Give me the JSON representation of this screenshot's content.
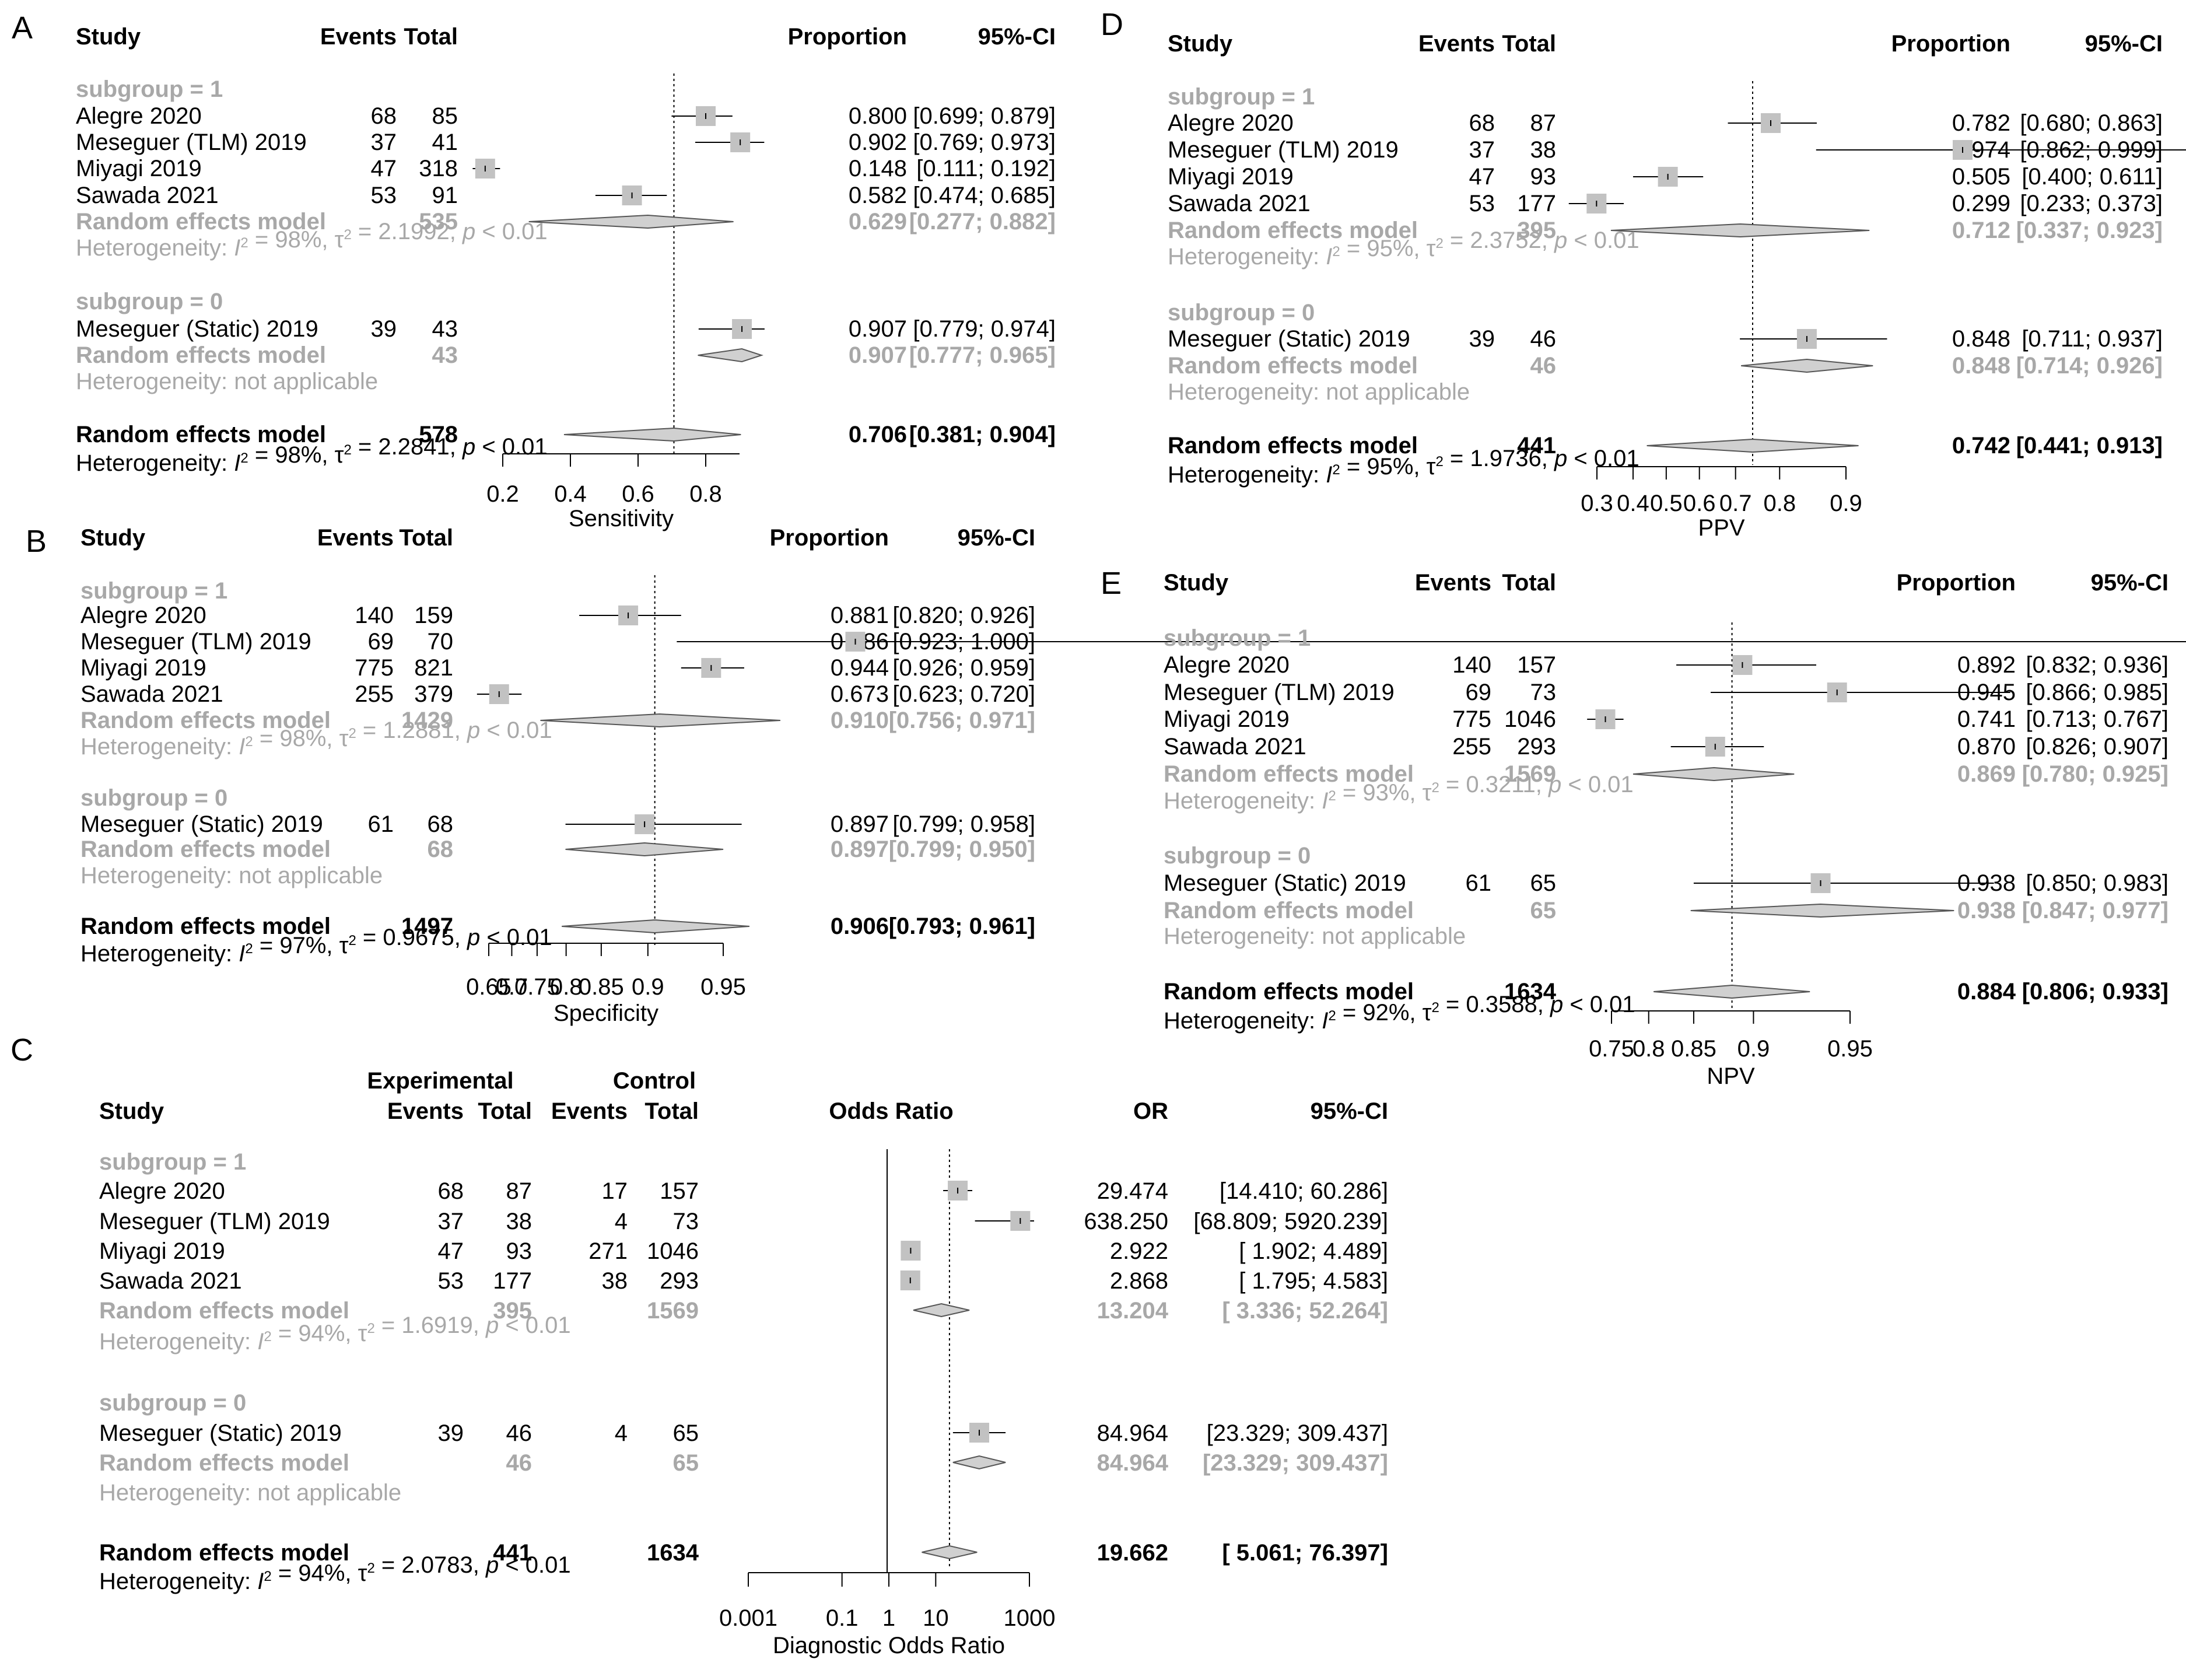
{
  "chart_data": [
    {
      "letter": "A",
      "type": "forest",
      "columns": [
        "Study",
        "Events",
        "Total",
        "Proportion",
        "95%-CI"
      ],
      "xlabel": "Sensitivity",
      "scale": "linear",
      "xlim": [
        0.2,
        0.9
      ],
      "xticks": [
        0.2,
        0.4,
        0.6,
        0.8
      ],
      "xtick_labels": [
        "0.2",
        "0.4",
        "0.6",
        "0.8"
      ],
      "ref_line": 0.706,
      "subgroups": [
        {
          "label": "subgroup = 1",
          "studies": [
            {
              "name": "Alegre 2020",
              "events": "68",
              "total": "85",
              "est": 0.8,
              "lo": 0.699,
              "hi": 0.879,
              "est_text": "0.800",
              "ci_text": "[0.699; 0.879]"
            },
            {
              "name": "Meseguer (TLM) 2019",
              "events": "37",
              "total": "41",
              "est": 0.902,
              "lo": 0.769,
              "hi": 0.973,
              "est_text": "0.902",
              "ci_text": "[0.769; 0.973]"
            },
            {
              "name": "Miyagi 2019",
              "events": "47",
              "total": "318",
              "est": 0.148,
              "lo": 0.111,
              "hi": 0.192,
              "est_text": "0.148",
              "ci_text": "[0.111; 0.192]"
            },
            {
              "name": "Sawada 2021",
              "events": "53",
              "total": "91",
              "est": 0.582,
              "lo": 0.474,
              "hi": 0.685,
              "est_text": "0.582",
              "ci_text": "[0.474; 0.685]"
            }
          ],
          "model": {
            "label": "Random effects model",
            "total": "535",
            "est": 0.629,
            "lo": 0.277,
            "hi": 0.882,
            "est_text": "0.629",
            "ci_text": "[0.277; 0.882]"
          },
          "het": {
            "i2": "98%",
            "tau2": "2.1992",
            "p": "< 0.01"
          }
        },
        {
          "label": "subgroup = 0",
          "studies": [
            {
              "name": "Meseguer (Static) 2019",
              "events": "39",
              "total": "43",
              "est": 0.907,
              "lo": 0.779,
              "hi": 0.974,
              "est_text": "0.907",
              "ci_text": "[0.779; 0.974]"
            }
          ],
          "model": {
            "label": "Random effects model",
            "total": "43",
            "est": 0.907,
            "lo": 0.777,
            "hi": 0.965,
            "est_text": "0.907",
            "ci_text": "[0.777; 0.965]"
          },
          "het_na": "Heterogeneity: not applicable"
        }
      ],
      "overall": {
        "label": "Random effects model",
        "total": "578",
        "est": 0.706,
        "lo": 0.381,
        "hi": 0.904,
        "est_text": "0.706",
        "ci_text": "[0.381; 0.904]"
      },
      "overall_het": {
        "i2": "98%",
        "tau2": "2.2841",
        "p": "< 0.01"
      }
    },
    {
      "letter": "B",
      "type": "forest",
      "columns": [
        "Study",
        "Events",
        "Total",
        "Proportion",
        "95%-CI"
      ],
      "xlabel": "Specificity",
      "scale": "logit",
      "xlim": [
        0.65,
        0.95
      ],
      "xticks": [
        0.65,
        0.7,
        0.75,
        0.8,
        0.85,
        0.9,
        0.95
      ],
      "xtick_labels": [
        "0.65",
        "0.7",
        "0.75",
        "0.8",
        "0.85",
        "0.9",
        "0.95"
      ],
      "ref_line": 0.906,
      "subgroups": [
        {
          "label": "subgroup = 1",
          "studies": [
            {
              "name": "Alegre 2020",
              "events": "140",
              "total": "159",
              "est": 0.881,
              "lo": 0.82,
              "hi": 0.926,
              "est_text": "0.881",
              "ci_text": "[0.820; 0.926]"
            },
            {
              "name": "Meseguer (TLM) 2019",
              "events": "69",
              "total": "70",
              "est": 0.986,
              "lo": 0.923,
              "hi": 1.0,
              "est_text": "0.986",
              "ci_text": "[0.923; 1.000]"
            },
            {
              "name": "Miyagi 2019",
              "events": "775",
              "total": "821",
              "est": 0.944,
              "lo": 0.926,
              "hi": 0.959,
              "est_text": "0.944",
              "ci_text": "[0.926; 0.959]"
            },
            {
              "name": "Sawada 2021",
              "events": "255",
              "total": "379",
              "est": 0.673,
              "lo": 0.623,
              "hi": 0.72,
              "est_text": "0.673",
              "ci_text": "[0.623; 0.720]"
            }
          ],
          "model": {
            "label": "Random effects model",
            "total": "1429",
            "est": 0.91,
            "lo": 0.756,
            "hi": 0.971,
            "est_text": "0.910",
            "ci_text": "[0.756; 0.971]"
          },
          "het": {
            "i2": "98%",
            "tau2": "1.2881",
            "p": "< 0.01"
          }
        },
        {
          "label": "subgroup = 0",
          "studies": [
            {
              "name": "Meseguer (Static) 2019",
              "events": "61",
              "total": "68",
              "est": 0.897,
              "lo": 0.799,
              "hi": 0.958,
              "est_text": "0.897",
              "ci_text": "[0.799; 0.958]"
            }
          ],
          "model": {
            "label": "Random effects model",
            "total": "68",
            "est": 0.897,
            "lo": 0.799,
            "hi": 0.95,
            "est_text": "0.897",
            "ci_text": "[0.799; 0.950]"
          },
          "het_na": "Heterogeneity: not applicable"
        }
      ],
      "overall": {
        "label": "Random effects model",
        "total": "1497",
        "est": 0.906,
        "lo": 0.793,
        "hi": 0.961,
        "est_text": "0.906",
        "ci_text": "[0.793; 0.961]"
      },
      "overall_het": {
        "i2": "97%",
        "tau2": "0.9675",
        "p": "< 0.01"
      }
    },
    {
      "letter": "C",
      "type": "forest",
      "group_headers": [
        "Experimental",
        "Control"
      ],
      "columns": [
        "Study",
        "Events",
        "Total",
        "Events",
        "Total",
        "Odds Ratio",
        "OR",
        "95%-CI"
      ],
      "xlabel": "Diagnostic Odds Ratio",
      "scale": "log",
      "xlim": [
        0.001,
        1000
      ],
      "xticks": [
        0.001,
        0.1,
        1,
        10,
        1000
      ],
      "xtick_labels": [
        "0.001",
        "0.1",
        "1",
        "10",
        "1000"
      ],
      "null_line": 1,
      "ref_line": 19.662,
      "subgroups": [
        {
          "label": "subgroup = 1",
          "studies": [
            {
              "name": "Alegre 2020",
              "e_events": "68",
              "e_total": "87",
              "c_events": "17",
              "c_total": "157",
              "est": 29.474,
              "lo": 14.41,
              "hi": 60.286,
              "est_text": "29.474",
              "ci_text": "[14.410;  60.286]"
            },
            {
              "name": "Meseguer (TLM) 2019",
              "e_events": "37",
              "e_total": "38",
              "c_events": "4",
              "c_total": "73",
              "est": 638.25,
              "lo": 68.809,
              "hi": 5920.239,
              "est_text": "638.250",
              "ci_text": "[68.809; 5920.239]"
            },
            {
              "name": "Miyagi 2019",
              "e_events": "47",
              "e_total": "93",
              "c_events": "271",
              "c_total": "1046",
              "est": 2.922,
              "lo": 1.902,
              "hi": 4.489,
              "est_text": "2.922",
              "ci_text": "[ 1.902;    4.489]"
            },
            {
              "name": "Sawada 2021",
              "e_events": "53",
              "e_total": "177",
              "c_events": "38",
              "c_total": "293",
              "est": 2.868,
              "lo": 1.795,
              "hi": 4.583,
              "est_text": "2.868",
              "ci_text": "[ 1.795;    4.583]"
            }
          ],
          "model": {
            "label": "Random effects model",
            "e_total": "395",
            "c_total": "1569",
            "est": 13.204,
            "lo": 3.336,
            "hi": 52.264,
            "est_text": "13.204",
            "ci_text": "[ 3.336;  52.264]"
          },
          "het": {
            "i2": "94%",
            "tau2": "1.6919",
            "p": "< 0.01"
          }
        },
        {
          "label": "subgroup = 0",
          "studies": [
            {
              "name": "Meseguer (Static) 2019",
              "e_events": "39",
              "e_total": "46",
              "c_events": "4",
              "c_total": "65",
              "est": 84.964,
              "lo": 23.329,
              "hi": 309.437,
              "est_text": "84.964",
              "ci_text": "[23.329;  309.437]"
            }
          ],
          "model": {
            "label": "Random effects model",
            "e_total": "46",
            "c_total": "65",
            "est": 84.964,
            "lo": 23.329,
            "hi": 309.437,
            "est_text": "84.964",
            "ci_text": "[23.329;  309.437]"
          },
          "het_na": "Heterogeneity: not applicable"
        }
      ],
      "overall": {
        "label": "Random effects model",
        "e_total": "441",
        "c_total": "1634",
        "est": 19.662,
        "lo": 5.061,
        "hi": 76.397,
        "est_text": "19.662",
        "ci_text": "[ 5.061;   76.397]"
      },
      "overall_het": {
        "i2": "94%",
        "tau2": "2.0783",
        "p": "< 0.01"
      }
    },
    {
      "letter": "D",
      "type": "forest",
      "columns": [
        "Study",
        "Events",
        "Total",
        "Proportion",
        "95%-CI"
      ],
      "xlabel": "PPV",
      "scale": "logit",
      "xlim": [
        0.3,
        0.9
      ],
      "xticks": [
        0.3,
        0.4,
        0.5,
        0.6,
        0.7,
        0.8,
        0.9
      ],
      "xtick_labels": [
        "0.3",
        "0.4",
        "0.5",
        "0.6",
        "0.7",
        "0.8",
        "0.9"
      ],
      "ref_line": 0.742,
      "subgroups": [
        {
          "label": "subgroup = 1",
          "studies": [
            {
              "name": "Alegre 2020",
              "events": "68",
              "total": "87",
              "est": 0.782,
              "lo": 0.68,
              "hi": 0.863,
              "est_text": "0.782",
              "ci_text": "[0.680; 0.863]"
            },
            {
              "name": "Meseguer (TLM) 2019",
              "events": "37",
              "total": "38",
              "est": 0.974,
              "lo": 0.862,
              "hi": 0.999,
              "est_text": "0.974",
              "ci_text": "[0.862; 0.999]"
            },
            {
              "name": "Miyagi 2019",
              "events": "47",
              "total": "93",
              "est": 0.505,
              "lo": 0.4,
              "hi": 0.611,
              "est_text": "0.505",
              "ci_text": "[0.400; 0.611]"
            },
            {
              "name": "Sawada 2021",
              "events": "53",
              "total": "177",
              "est": 0.299,
              "lo": 0.233,
              "hi": 0.373,
              "est_text": "0.299",
              "ci_text": "[0.233; 0.373]"
            }
          ],
          "model": {
            "label": "Random effects model",
            "total": "395",
            "est": 0.712,
            "lo": 0.337,
            "hi": 0.923,
            "est_text": "0.712",
            "ci_text": "[0.337; 0.923]"
          },
          "het": {
            "i2": "95%",
            "tau2": "2.3752",
            "p": "< 0.01"
          }
        },
        {
          "label": "subgroup = 0",
          "studies": [
            {
              "name": "Meseguer (Static) 2019",
              "events": "39",
              "total": "46",
              "est": 0.848,
              "lo": 0.711,
              "hi": 0.937,
              "est_text": "0.848",
              "ci_text": "[0.711; 0.937]"
            }
          ],
          "model": {
            "label": "Random effects model",
            "total": "46",
            "est": 0.848,
            "lo": 0.714,
            "hi": 0.926,
            "est_text": "0.848",
            "ci_text": "[0.714; 0.926]"
          },
          "het_na": "Heterogeneity: not applicable"
        }
      ],
      "overall": {
        "label": "Random effects model",
        "total": "441",
        "est": 0.742,
        "lo": 0.441,
        "hi": 0.913,
        "est_text": "0.742",
        "ci_text": "[0.441; 0.913]"
      },
      "overall_het": {
        "i2": "95%",
        "tau2": "1.9736",
        "p": "< 0.01"
      }
    },
    {
      "letter": "E",
      "type": "forest",
      "columns": [
        "Study",
        "Events",
        "Total",
        "Proportion",
        "95%-CI"
      ],
      "xlabel": "NPV",
      "scale": "logit",
      "xlim": [
        0.75,
        0.95
      ],
      "xticks": [
        0.75,
        0.8,
        0.85,
        0.9,
        0.95
      ],
      "xtick_labels": [
        "0.75",
        "0.8",
        "0.85",
        "0.9",
        "0.95"
      ],
      "ref_line": 0.884,
      "subgroups": [
        {
          "label": "subgroup = 1",
          "studies": [
            {
              "name": "Alegre 2020",
              "events": "140",
              "total": "157",
              "est": 0.892,
              "lo": 0.832,
              "hi": 0.936,
              "est_text": "0.892",
              "ci_text": "[0.832; 0.936]"
            },
            {
              "name": "Meseguer (TLM) 2019",
              "events": "69",
              "total": "73",
              "est": 0.945,
              "lo": 0.866,
              "hi": 0.985,
              "est_text": "0.945",
              "ci_text": "[0.866; 0.985]"
            },
            {
              "name": "Miyagi 2019",
              "events": "775",
              "total": "1046",
              "est": 0.741,
              "lo": 0.713,
              "hi": 0.767,
              "est_text": "0.741",
              "ci_text": "[0.713; 0.767]"
            },
            {
              "name": "Sawada 2021",
              "events": "255",
              "total": "293",
              "est": 0.87,
              "lo": 0.826,
              "hi": 0.907,
              "est_text": "0.870",
              "ci_text": "[0.826; 0.907]"
            }
          ],
          "model": {
            "label": "Random effects model",
            "total": "1569",
            "est": 0.869,
            "lo": 0.78,
            "hi": 0.925,
            "est_text": "0.869",
            "ci_text": "[0.780; 0.925]"
          },
          "het": {
            "i2": "93%",
            "tau2": "0.3211",
            "p": "< 0.01"
          }
        },
        {
          "label": "subgroup = 0",
          "studies": [
            {
              "name": "Meseguer (Static) 2019",
              "events": "61",
              "total": "65",
              "est": 0.938,
              "lo": 0.85,
              "hi": 0.983,
              "est_text": "0.938",
              "ci_text": "[0.850; 0.983]"
            }
          ],
          "model": {
            "label": "Random effects model",
            "total": "65",
            "est": 0.938,
            "lo": 0.847,
            "hi": 0.977,
            "est_text": "0.938",
            "ci_text": "[0.847; 0.977]"
          },
          "het_na": "Heterogeneity: not applicable"
        }
      ],
      "overall": {
        "label": "Random effects model",
        "total": "1634",
        "est": 0.884,
        "lo": 0.806,
        "hi": 0.933,
        "est_text": "0.884",
        "ci_text": "[0.806; 0.933]"
      },
      "overall_het": {
        "i2": "92%",
        "tau2": "0.3588",
        "p": "< 0.01"
      }
    }
  ]
}
